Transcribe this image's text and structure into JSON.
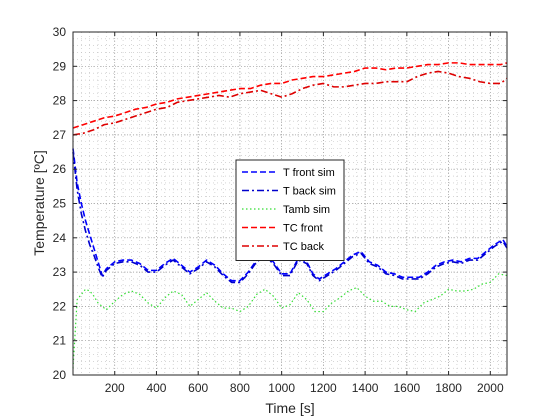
{
  "chart_data": {
    "type": "line",
    "title": "",
    "xlabel": "Time [s]",
    "ylabel": "Temperature [ºC]",
    "xlim": [
      0,
      2080
    ],
    "ylim": [
      20,
      30
    ],
    "xticks": [
      200,
      400,
      600,
      800,
      1000,
      1200,
      1400,
      1600,
      1800,
      2000
    ],
    "yticks": [
      20,
      21,
      22,
      23,
      24,
      25,
      26,
      27,
      28,
      29,
      30
    ],
    "grid": "dotted-minor",
    "legend_position": "center",
    "series": [
      {
        "name": "T front sim",
        "color": "#0000ff",
        "dash": "dashed",
        "x": [
          0,
          20,
          40,
          60,
          80,
          100,
          120,
          140,
          160,
          200,
          240,
          280,
          320,
          360,
          400,
          440,
          480,
          520,
          560,
          600,
          640,
          680,
          720,
          760,
          800,
          840,
          880,
          920,
          960,
          1000,
          1040,
          1080,
          1120,
          1150,
          1180,
          1220,
          1260,
          1300,
          1340,
          1380,
          1420,
          1460,
          1500,
          1540,
          1580,
          1620,
          1660,
          1700,
          1740,
          1780,
          1820,
          1860,
          1900,
          1940,
          1980,
          2020,
          2060,
          2080
        ],
        "y": [
          26.6,
          25.6,
          25.0,
          24.5,
          24.1,
          23.7,
          23.3,
          22.9,
          23.1,
          23.3,
          23.35,
          23.35,
          23.25,
          23.05,
          23.05,
          23.25,
          23.4,
          23.2,
          23.0,
          23.15,
          23.35,
          23.2,
          22.95,
          22.75,
          22.75,
          23.0,
          23.35,
          23.5,
          23.3,
          22.95,
          22.95,
          23.4,
          23.3,
          22.95,
          22.8,
          22.95,
          23.1,
          23.3,
          23.5,
          23.6,
          23.3,
          23.2,
          23.0,
          22.95,
          22.85,
          22.85,
          22.85,
          23.0,
          23.2,
          23.3,
          23.35,
          23.3,
          23.4,
          23.4,
          23.6,
          23.8,
          23.95,
          23.75
        ]
      },
      {
        "name": "T back sim",
        "color": "#0000cc",
        "dash": "dashdot",
        "x": [
          0,
          20,
          40,
          60,
          80,
          100,
          120,
          140,
          160,
          200,
          240,
          280,
          320,
          360,
          400,
          440,
          480,
          520,
          560,
          600,
          640,
          680,
          720,
          760,
          800,
          840,
          880,
          920,
          960,
          1000,
          1040,
          1080,
          1120,
          1150,
          1180,
          1220,
          1260,
          1300,
          1340,
          1380,
          1420,
          1460,
          1500,
          1540,
          1580,
          1620,
          1660,
          1700,
          1740,
          1780,
          1820,
          1860,
          1900,
          1940,
          1980,
          2020,
          2060,
          2080
        ],
        "y": [
          26.5,
          25.4,
          24.7,
          24.2,
          23.8,
          23.5,
          23.15,
          22.85,
          23.05,
          23.25,
          23.3,
          23.3,
          23.2,
          23.0,
          23.0,
          23.2,
          23.35,
          23.15,
          22.95,
          23.1,
          23.3,
          23.15,
          22.9,
          22.7,
          22.7,
          22.95,
          23.3,
          23.45,
          23.25,
          22.9,
          22.9,
          23.35,
          23.25,
          22.9,
          22.75,
          22.9,
          23.05,
          23.25,
          23.45,
          23.55,
          23.25,
          23.15,
          22.95,
          22.9,
          22.8,
          22.8,
          22.8,
          22.95,
          23.15,
          23.25,
          23.3,
          23.25,
          23.35,
          23.35,
          23.55,
          23.75,
          23.9,
          23.7
        ]
      },
      {
        "name": "Tamb sim",
        "color": "#33dd33",
        "dash": "dotted",
        "x": [
          0,
          20,
          40,
          60,
          80,
          100,
          120,
          160,
          200,
          240,
          280,
          320,
          360,
          400,
          440,
          480,
          520,
          560,
          600,
          640,
          680,
          720,
          760,
          800,
          840,
          880,
          920,
          960,
          1000,
          1040,
          1080,
          1120,
          1160,
          1200,
          1240,
          1280,
          1320,
          1360,
          1400,
          1440,
          1480,
          1520,
          1560,
          1600,
          1640,
          1680,
          1720,
          1760,
          1800,
          1840,
          1880,
          1920,
          1960,
          2000,
          2040,
          2080
        ],
        "y": [
          20.2,
          22.2,
          22.35,
          22.5,
          22.45,
          22.3,
          22.1,
          21.9,
          22.15,
          22.35,
          22.45,
          22.35,
          22.1,
          21.95,
          22.25,
          22.45,
          22.35,
          22.0,
          22.2,
          22.4,
          22.15,
          21.95,
          21.95,
          21.85,
          22.0,
          22.35,
          22.5,
          22.3,
          21.95,
          22.05,
          22.4,
          22.2,
          21.85,
          21.85,
          22.1,
          22.25,
          22.45,
          22.55,
          22.3,
          22.15,
          22.15,
          22.0,
          22.0,
          21.9,
          21.85,
          22.1,
          22.2,
          22.3,
          22.5,
          22.45,
          22.45,
          22.5,
          22.65,
          22.7,
          22.95,
          22.9
        ]
      },
      {
        "name": "TC front",
        "color": "#ff0000",
        "dash": "dashed",
        "x": [
          0,
          50,
          100,
          150,
          200,
          250,
          300,
          350,
          400,
          450,
          500,
          550,
          600,
          650,
          700,
          750,
          800,
          850,
          900,
          950,
          1000,
          1050,
          1100,
          1150,
          1200,
          1250,
          1300,
          1350,
          1400,
          1450,
          1500,
          1550,
          1600,
          1650,
          1700,
          1750,
          1800,
          1850,
          1900,
          1950,
          2000,
          2050,
          2080
        ],
        "y": [
          27.2,
          27.3,
          27.4,
          27.5,
          27.55,
          27.65,
          27.75,
          27.8,
          27.9,
          27.95,
          28.05,
          28.1,
          28.15,
          28.2,
          28.25,
          28.3,
          28.35,
          28.35,
          28.45,
          28.5,
          28.5,
          28.6,
          28.65,
          28.7,
          28.7,
          28.75,
          28.8,
          28.85,
          28.95,
          28.95,
          28.9,
          28.95,
          28.95,
          29.0,
          29.05,
          29.05,
          29.1,
          29.1,
          29.05,
          29.05,
          29.05,
          29.05,
          29.1
        ]
      },
      {
        "name": "TC back",
        "color": "#dd0000",
        "dash": "dashdot",
        "x": [
          0,
          50,
          100,
          150,
          200,
          250,
          300,
          350,
          400,
          450,
          500,
          550,
          600,
          650,
          700,
          750,
          800,
          850,
          900,
          950,
          1000,
          1050,
          1100,
          1150,
          1200,
          1250,
          1300,
          1350,
          1400,
          1450,
          1500,
          1550,
          1600,
          1650,
          1700,
          1750,
          1800,
          1850,
          1900,
          1950,
          2000,
          2050,
          2080
        ],
        "y": [
          27.0,
          27.05,
          27.15,
          27.3,
          27.35,
          27.45,
          27.55,
          27.65,
          27.75,
          27.8,
          27.95,
          28.0,
          28.05,
          28.1,
          28.15,
          28.1,
          28.2,
          28.25,
          28.3,
          28.2,
          28.1,
          28.2,
          28.35,
          28.45,
          28.5,
          28.4,
          28.4,
          28.45,
          28.5,
          28.5,
          28.55,
          28.55,
          28.55,
          28.7,
          28.8,
          28.85,
          28.8,
          28.7,
          28.65,
          28.55,
          28.5,
          28.5,
          28.65
        ]
      }
    ]
  }
}
